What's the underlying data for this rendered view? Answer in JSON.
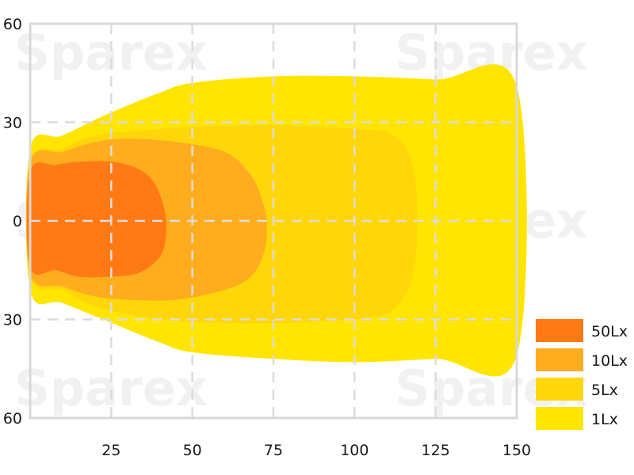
{
  "chart_data": {
    "type": "area",
    "title": "",
    "xlabel": "",
    "ylabel": "",
    "xlim": [
      0,
      150
    ],
    "ylim": [
      -60,
      60
    ],
    "x_ticks": [
      25,
      50,
      75,
      100,
      125,
      150
    ],
    "x_tick_labels": [
      "25",
      "50",
      "75",
      "100",
      "125",
      "150"
    ],
    "y_ticks": [
      60,
      30,
      0,
      -30,
      -60
    ],
    "y_tick_labels": [
      "60",
      "30",
      "0",
      "30",
      "60"
    ],
    "grid": true,
    "legend_position": "bottom-right",
    "watermark": "Sparex",
    "series": [
      {
        "name": "1Lx",
        "color": "#ffe500",
        "outline": [
          [
            0,
            22
          ],
          [
            10,
            26
          ],
          [
            25,
            33
          ],
          [
            40,
            39
          ],
          [
            50,
            42
          ],
          [
            75,
            44
          ],
          [
            100,
            44
          ],
          [
            125,
            43
          ],
          [
            150,
            41
          ],
          [
            150,
            -41
          ],
          [
            125,
            -42
          ],
          [
            100,
            -43
          ],
          [
            75,
            -42
          ],
          [
            50,
            -40
          ],
          [
            40,
            -37
          ],
          [
            25,
            -31
          ],
          [
            10,
            -25
          ],
          [
            0,
            -21
          ]
        ]
      },
      {
        "name": "5Lx",
        "color": "#ffd60a",
        "outline": [
          [
            0,
            18
          ],
          [
            10,
            22
          ],
          [
            20,
            26
          ],
          [
            40,
            28
          ],
          [
            60,
            29
          ],
          [
            80,
            29
          ],
          [
            100,
            28
          ],
          [
            110,
            27
          ],
          [
            116,
            22
          ],
          [
            119,
            10
          ],
          [
            119,
            -10
          ],
          [
            116,
            -22
          ],
          [
            110,
            -28
          ],
          [
            100,
            -30
          ],
          [
            80,
            -31
          ],
          [
            60,
            -31
          ],
          [
            40,
            -30
          ],
          [
            20,
            -26
          ],
          [
            10,
            -21
          ],
          [
            0,
            -17
          ]
        ]
      },
      {
        "name": "10Lx",
        "color": "#ffad1f",
        "outline": [
          [
            0,
            18
          ],
          [
            10,
            21
          ],
          [
            20,
            24
          ],
          [
            30,
            25
          ],
          [
            45,
            24
          ],
          [
            60,
            21
          ],
          [
            68,
            14
          ],
          [
            72,
            5
          ],
          [
            73,
            -2
          ],
          [
            72,
            -10
          ],
          [
            68,
            -17
          ],
          [
            60,
            -21
          ],
          [
            45,
            -24
          ],
          [
            30,
            -24
          ],
          [
            20,
            -23
          ],
          [
            10,
            -20
          ],
          [
            0,
            -16
          ]
        ]
      },
      {
        "name": "50Lx",
        "color": "#ff7a14",
        "outline": [
          [
            0,
            15
          ],
          [
            8,
            17
          ],
          [
            15,
            18
          ],
          [
            25,
            18
          ],
          [
            33,
            16
          ],
          [
            38,
            12
          ],
          [
            41,
            5
          ],
          [
            42,
            -2
          ],
          [
            41,
            -9
          ],
          [
            38,
            -13
          ],
          [
            33,
            -16
          ],
          [
            25,
            -17
          ],
          [
            15,
            -17
          ],
          [
            8,
            -15
          ],
          [
            0,
            -14
          ]
        ]
      }
    ],
    "legend": [
      {
        "label": "50Lx",
        "color": "#ff7a14"
      },
      {
        "label": "10Lx",
        "color": "#ffad1f"
      },
      {
        "label": "5Lx",
        "color": "#ffd60a"
      },
      {
        "label": "1Lx",
        "color": "#ffe500"
      }
    ]
  }
}
